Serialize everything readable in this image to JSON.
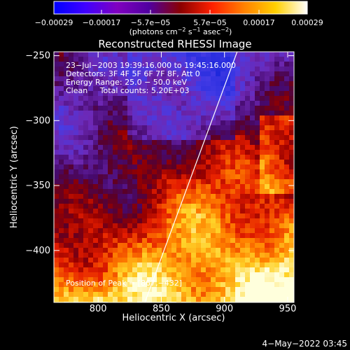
{
  "chart_data": {
    "type": "heatmap",
    "title": "Reconstructed RHESSI Image",
    "xlabel": "Heliocentric X (arcsec)",
    "ylabel": "Heliocentric Y (arcsec)",
    "xlim": [
      765,
      955
    ],
    "ylim": [
      -440,
      -247
    ],
    "x_ticks": [
      800,
      850,
      900,
      950
    ],
    "y_ticks": [
      -250,
      -300,
      -350,
      -400
    ],
    "x_tick_labels": [
      "800",
      "850",
      "900",
      "950"
    ],
    "y_tick_labels": [
      "−250",
      "−300",
      "−350",
      "−400"
    ],
    "colorbar": {
      "min": -0.00029,
      "max": 0.00029,
      "ticks": [
        "−0.00029",
        "−0.00017",
        "−5.7e−05",
        "5.7e−05",
        "0.00017",
        "0.00029"
      ],
      "unit_prefix": "(photons cm",
      "unit_exp1": "−2",
      "unit_mid": " s",
      "unit_exp2": "−1",
      "unit_mid2": " asec",
      "unit_exp3": "−2",
      "unit_suffix": ")",
      "colors": [
        "#0000ff",
        "#4000ff",
        "#8000c0",
        "#5000a0",
        "#8b0000",
        "#ff2000",
        "#ff8000",
        "#ffd000",
        "#ffffff"
      ]
    },
    "annotations": [
      "23−Jul−2003 19:39:16.000 to 19:45:16.000",
      "Detectors: 3F 4F 5F 6F 7F 8F, Att 0",
      "Energy Range: 25.0 − 50.0 keV",
      "Clean     Total counts: 5.20E+03"
    ],
    "peak_label": "Position of Peak = [867,−432]",
    "limb_line": {
      "x": [
        837,
        910
      ],
      "y": [
        -440,
        -247
      ]
    },
    "grid": false
  },
  "footer": {
    "date": "4−May−2022 03:45"
  }
}
